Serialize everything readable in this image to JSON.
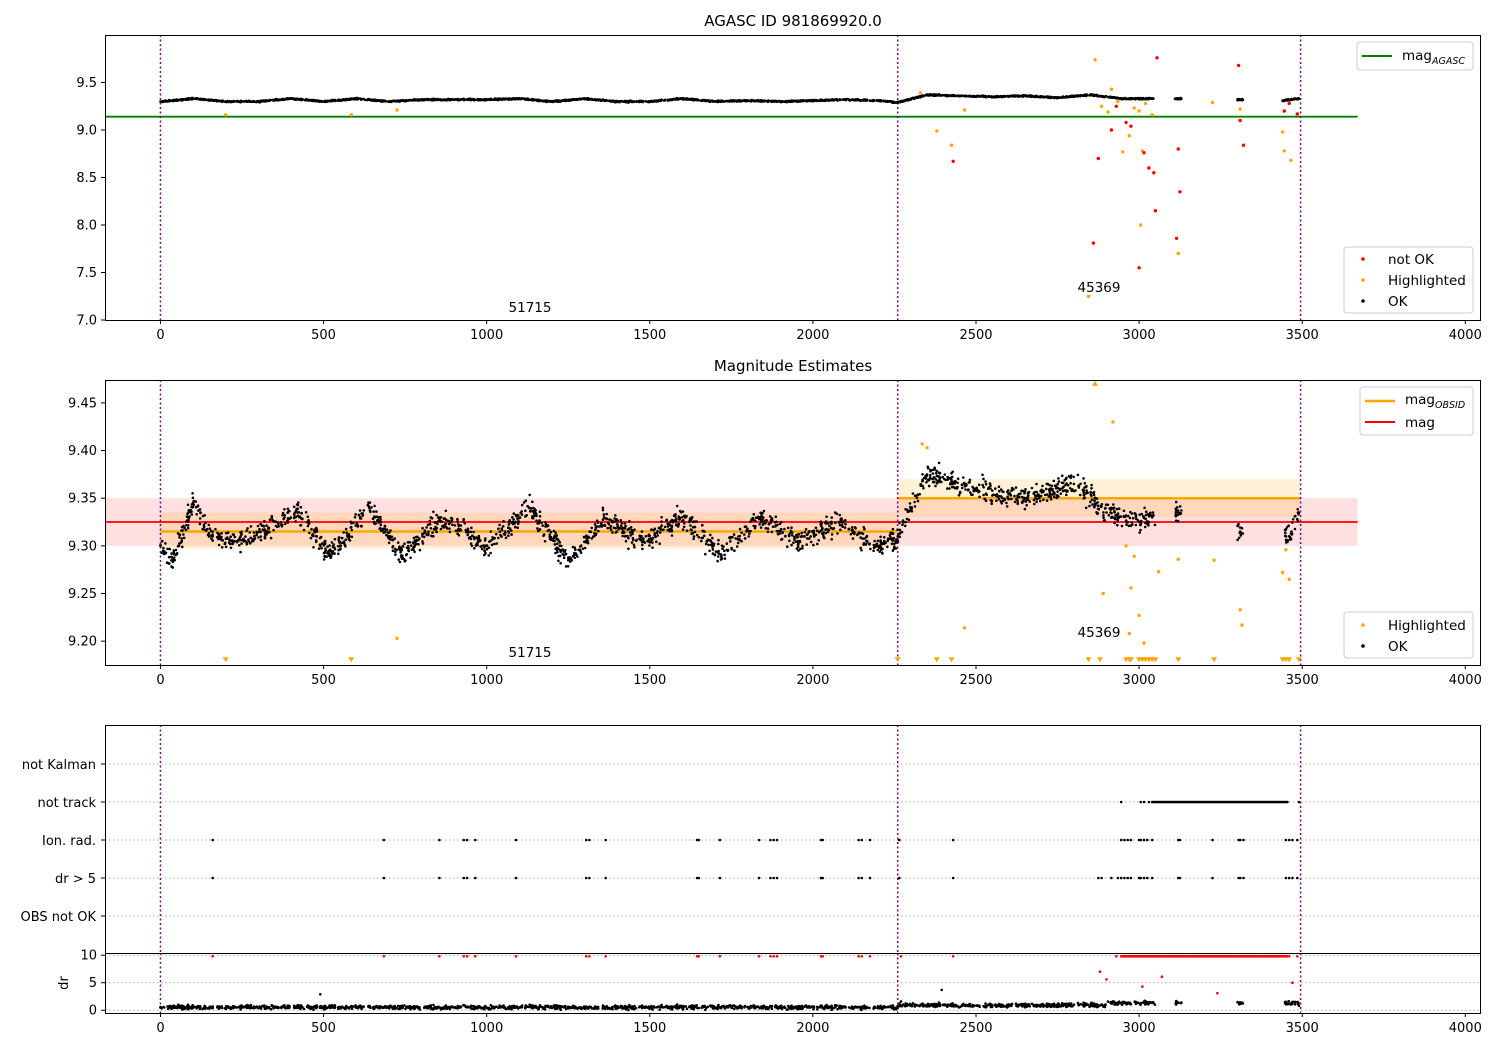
{
  "chart_data": [
    {
      "type": "scatter",
      "title": "AGASC ID 981869920.0",
      "xlim": [
        -170,
        4045
      ],
      "ylim": [
        7.0,
        10.0
      ],
      "xticks": [
        0,
        500,
        1000,
        1500,
        2000,
        2500,
        3000,
        3500,
        4000
      ],
      "yticks": [
        7.0,
        7.5,
        8.0,
        8.5,
        9.0,
        9.5
      ],
      "grid": false,
      "obs_boundaries": [
        0,
        2260,
        3495
      ],
      "obs_labels": [
        {
          "text": "51715",
          "x": 1130,
          "y": 7.1
        },
        {
          "text": "45369",
          "x": 2880,
          "y": 7.32
        }
      ],
      "reference_lines": [
        {
          "name": "mag_AGASC",
          "value": 9.14,
          "x_range": [
            -170,
            3670
          ],
          "color": "#008000"
        }
      ],
      "legends": [
        {
          "placement": "top-right",
          "entries": [
            {
              "label": "mag",
              "sub": "AGASC",
              "kind": "line",
              "color": "#008000"
            }
          ]
        },
        {
          "placement": "bottom-right",
          "entries": [
            {
              "label": "not OK",
              "kind": "point",
              "color": "#ff0000"
            },
            {
              "label": "Highlighted",
              "kind": "point",
              "color": "#ffa500"
            },
            {
              "label": "OK",
              "kind": "point",
              "color": "#000000"
            }
          ]
        }
      ],
      "series": [
        {
          "name": "OK",
          "color": "#000000",
          "x": [
            0,
            100,
            200,
            300,
            400,
            500,
            600,
            700,
            800,
            900,
            1000,
            1100,
            1200,
            1300,
            1400,
            1500,
            1600,
            1700,
            1800,
            1900,
            2000,
            2100,
            2200,
            2260,
            2350,
            2450,
            2550,
            2650,
            2750,
            2850,
            2950,
            3040,
            3125,
            3305,
            3440,
            3490
          ],
          "y": [
            9.3,
            9.33,
            9.3,
            9.3,
            9.33,
            9.3,
            9.33,
            9.3,
            9.32,
            9.32,
            9.32,
            9.33,
            9.3,
            9.33,
            9.3,
            9.3,
            9.33,
            9.3,
            9.31,
            9.3,
            9.31,
            9.32,
            9.31,
            9.29,
            9.37,
            9.36,
            9.35,
            9.36,
            9.34,
            9.37,
            9.33,
            9.33,
            9.33,
            9.32,
            9.31,
            9.33
          ]
        },
        {
          "name": "Highlighted",
          "color": "#ffa500",
          "x": [
            200,
            585,
            725,
            2330,
            2380,
            2425,
            2465,
            2865,
            2885,
            2905,
            2915,
            2935,
            2950,
            2970,
            2985,
            3000,
            3010,
            3020,
            3040,
            3120,
            3225,
            3310,
            3440,
            3445,
            3465,
            2845,
            3005
          ],
          "y": [
            9.16,
            9.16,
            9.21,
            9.39,
            8.99,
            8.84,
            9.21,
            9.74,
            9.25,
            9.19,
            9.43,
            9.3,
            8.77,
            8.94,
            9.23,
            9.2,
            8.78,
            9.28,
            9.16,
            7.7,
            9.29,
            9.22,
            8.98,
            8.78,
            8.68,
            7.25,
            8.0
          ]
        },
        {
          "name": "not OK",
          "color": "#ff0000",
          "x": [
            2430,
            2860,
            2875,
            2915,
            2930,
            2960,
            2975,
            3000,
            3015,
            3030,
            3045,
            3050,
            3055,
            3115,
            3120,
            3125,
            3305,
            3310,
            3320,
            3445,
            3460,
            3485
          ],
          "y": [
            8.67,
            7.81,
            8.7,
            9.0,
            9.25,
            9.08,
            9.04,
            7.55,
            8.76,
            8.6,
            8.55,
            8.15,
            9.76,
            7.86,
            8.8,
            8.35,
            9.68,
            9.1,
            8.84,
            9.2,
            9.28,
            9.17
          ]
        }
      ]
    },
    {
      "type": "scatter",
      "title": "Magnitude Estimates",
      "xlim": [
        -170,
        4045
      ],
      "ylim": [
        9.175,
        9.474
      ],
      "xticks": [
        0,
        500,
        1000,
        1500,
        2000,
        2500,
        3000,
        3500,
        4000
      ],
      "yticks": [
        9.2,
        9.25,
        9.3,
        9.35,
        9.4,
        9.45
      ],
      "grid": false,
      "obs_boundaries": [
        0,
        2260,
        3495
      ],
      "obs_labels": [
        {
          "text": "51715",
          "x": 1130,
          "y": 9.185
        },
        {
          "text": "45369",
          "x": 2880,
          "y": 9.21
        }
      ],
      "bands": [
        {
          "name": "mag",
          "value": 9.325,
          "low": 9.3,
          "high": 9.35,
          "x_range": [
            -170,
            3670
          ],
          "color": "#ff0000"
        },
        {
          "name": "mag_OBSID 51715",
          "value": 9.315,
          "low": 9.297,
          "high": 9.335,
          "x_range": [
            0,
            2260
          ],
          "color": "#ffa500"
        },
        {
          "name": "mag_OBSID 45369",
          "value": 9.35,
          "low": 9.33,
          "high": 9.37,
          "x_range": [
            2260,
            3495
          ],
          "color": "#ffa500"
        }
      ],
      "legends": [
        {
          "placement": "top-right",
          "entries": [
            {
              "label": "mag",
              "sub": "OBSID",
              "kind": "line",
              "color": "#ffa500"
            },
            {
              "label": "mag",
              "kind": "line",
              "color": "#ff0000"
            }
          ]
        },
        {
          "placement": "bottom-right",
          "entries": [
            {
              "label": "Highlighted",
              "kind": "point",
              "color": "#ffa500"
            },
            {
              "label": "OK",
              "kind": "point",
              "color": "#000000"
            }
          ]
        }
      ],
      "series": [
        {
          "name": "OK",
          "color": "#000000",
          "x": [
            0,
            40,
            100,
            160,
            260,
            420,
            520,
            640,
            740,
            860,
            1000,
            1130,
            1250,
            1360,
            1480,
            1600,
            1720,
            1840,
            1960,
            2080,
            2200,
            2260,
            2350,
            2500,
            2650,
            2800,
            2900,
            3000,
            3040,
            3120,
            3310,
            3460,
            3490
          ],
          "y": [
            9.3,
            9.285,
            9.345,
            9.31,
            9.305,
            9.335,
            9.29,
            9.34,
            9.29,
            9.33,
            9.3,
            9.34,
            9.285,
            9.33,
            9.305,
            9.33,
            9.29,
            9.33,
            9.305,
            9.325,
            9.3,
            9.31,
            9.375,
            9.36,
            9.35,
            9.365,
            9.335,
            9.325,
            9.33,
            9.335,
            9.315,
            9.31,
            9.335
          ]
        },
        {
          "name": "Highlighted",
          "color": "#ffa500",
          "x": [
            725,
            2335,
            2350,
            2465,
            2890,
            2920,
            2960,
            2970,
            2975,
            2985,
            3000,
            3015,
            3060,
            3120,
            3230,
            3310,
            3315,
            3440,
            3450,
            3460
          ],
          "y": [
            9.203,
            9.407,
            9.403,
            9.214,
            9.25,
            9.43,
            9.3,
            9.208,
            9.256,
            9.289,
            9.227,
            9.198,
            9.273,
            9.286,
            9.285,
            9.233,
            9.217,
            9.272,
            9.296,
            9.265
          ]
        }
      ]
    },
    {
      "type": "scatter",
      "title": "",
      "xlim": [
        -170,
        4045
      ],
      "xticks": [
        0,
        500,
        1000,
        1500,
        2000,
        2500,
        3000,
        3500,
        4000
      ],
      "flag_categories": [
        "not Kalman",
        "not track",
        "Ion. rad.",
        "dr > 5",
        "OBS not OK"
      ],
      "flag_events": {
        "not Kalman": [],
        "not track": {
          "points": [
            2945,
            3005,
            3015,
            3030,
            3040
          ],
          "ranges": [
            [
              3045,
              3455
            ]
          ],
          "extra": [
            3490
          ]
        },
        "Ion. rad.": [
          160,
          685,
          855,
          930,
          940,
          965,
          1090,
          1305,
          1315,
          1365,
          1645,
          1650,
          1715,
          1835,
          1870,
          1880,
          1890,
          2025,
          2030,
          2140,
          2150,
          2175,
          2265,
          2430,
          2945,
          2955,
          2965,
          2975,
          3000,
          3005,
          3015,
          3025,
          3040,
          3120,
          3125,
          3225,
          3305,
          3310,
          3320,
          3450,
          3460,
          3470,
          3485
        ],
        "dr > 5": [
          160,
          685,
          855,
          930,
          940,
          965,
          1090,
          1305,
          1315,
          1365,
          1645,
          1650,
          1715,
          1835,
          1870,
          1880,
          1890,
          2025,
          2030,
          2140,
          2150,
          2175,
          2265,
          2430,
          2875,
          2885,
          2915,
          2935,
          2945,
          2955,
          2965,
          2975,
          3000,
          3005,
          3015,
          3025,
          3040,
          3120,
          3125,
          3225,
          3305,
          3310,
          3320,
          3450,
          3460,
          3470,
          3485
        ],
        "OBS not OK": []
      },
      "obs_boundaries": [
        0,
        2260,
        3495
      ]
    },
    {
      "type": "scatter",
      "ylabel": "dr",
      "xlim": [
        -170,
        4045
      ],
      "ylim": [
        -0.5,
        10.4
      ],
      "xticks": [
        0,
        500,
        1000,
        1500,
        2000,
        2500,
        3000,
        3500,
        4000
      ],
      "yticks": [
        0,
        5,
        10
      ],
      "obs_boundaries": [
        0,
        2260,
        3495
      ],
      "series": [
        {
          "name": "OK",
          "color": "#000000",
          "x": [
            0,
            300,
            600,
            900,
            1200,
            1500,
            1800,
            2100,
            2255,
            2270,
            2400,
            2600,
            2800,
            2950,
            3030,
            3310,
            3450,
            3490,
            490,
            2395
          ],
          "y": [
            0.5,
            0.4,
            0.6,
            0.5,
            0.4,
            0.5,
            0.6,
            0.5,
            0.4,
            1.6,
            1.0,
            0.7,
            1.0,
            1.5,
            1.2,
            1.4,
            1.1,
            0.8,
            2.9,
            3.7
          ]
        },
        {
          "name": "not OK",
          "color": "#ff0000",
          "x": [
            160,
            685,
            855,
            930,
            940,
            965,
            1090,
            1305,
            1315,
            1365,
            1645,
            1650,
            1715,
            1835,
            1870,
            1880,
            1890,
            2025,
            2030,
            2140,
            2150,
            2175,
            2270,
            2430,
            2880,
            2930,
            2990,
            3020,
            3060,
            3120,
            3230,
            3320,
            3460,
            3485,
            2900,
            3010,
            3070,
            3240,
            3470
          ],
          "y": [
            9.8,
            9.8,
            9.8,
            9.8,
            9.8,
            9.8,
            9.8,
            9.8,
            9.8,
            9.8,
            9.8,
            9.8,
            9.8,
            9.8,
            9.8,
            9.8,
            9.8,
            9.8,
            9.8,
            9.8,
            9.8,
            9.8,
            9.8,
            9.8,
            7.0,
            9.8,
            9.8,
            9.8,
            9.8,
            9.8,
            9.8,
            9.8,
            9.8,
            9.8,
            5.6,
            4.3,
            6.1,
            3.1,
            5.0
          ],
          "dense_ranges": [
            [
              2945,
              3455
            ]
          ],
          "dense_value": 9.8
        }
      ]
    }
  ]
}
